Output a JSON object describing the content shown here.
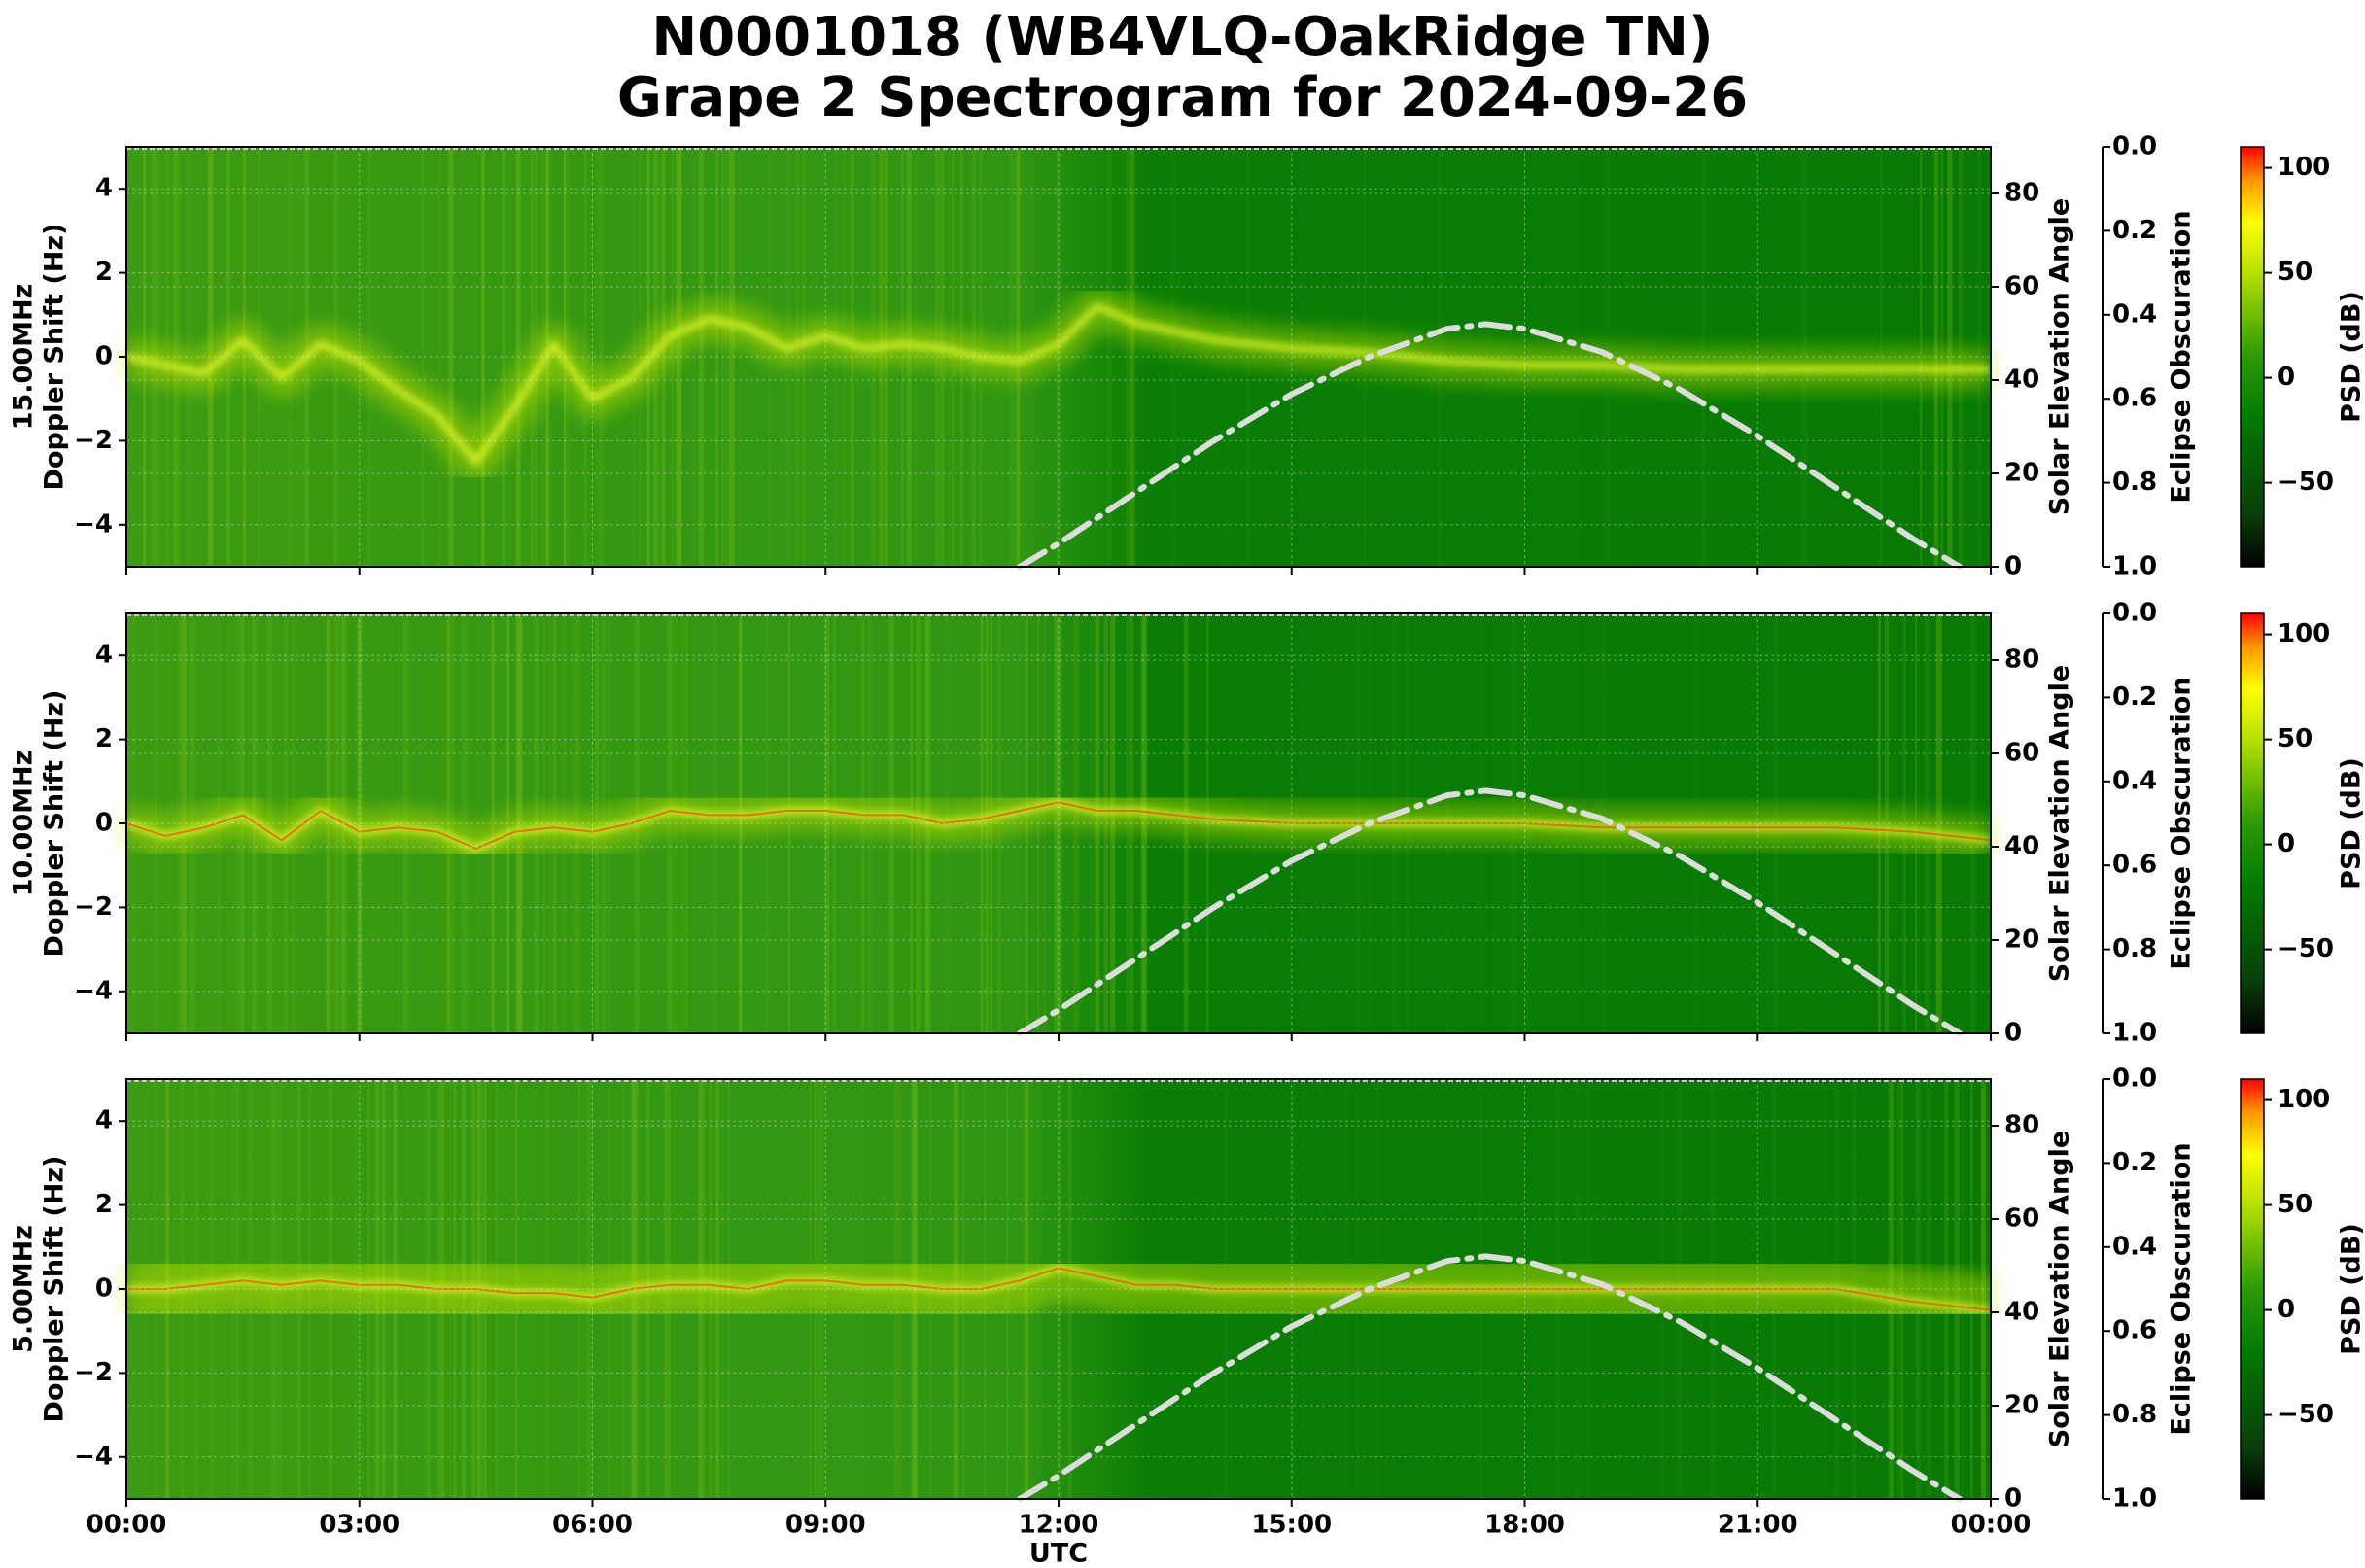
{
  "chart_data": {
    "type": "heatmap",
    "title": "N0001018 (WB4VLQ-OakRidge TN)",
    "subtitle": "Grape 2 Spectrogram for 2024-09-26",
    "xlabel": "UTC",
    "x_ticks": [
      "00:00",
      "03:00",
      "06:00",
      "09:00",
      "12:00",
      "15:00",
      "18:00",
      "21:00",
      "00:00"
    ],
    "x_range_hours": [
      0,
      24
    ],
    "grid": true,
    "panels": [
      {
        "frequency_label": "15.00MHz",
        "ylabel": "Doppler Shift (Hz)",
        "ylim": [
          -5,
          5
        ],
        "y_ticks": [
          4,
          2,
          0,
          -2,
          -4
        ],
        "right_ylabel": "Solar Elevation Angle",
        "right_ylim": [
          0,
          90
        ],
        "right_ticks": [
          80,
          60,
          40,
          20,
          0
        ],
        "eclipse_label": "Eclipse Obscuration",
        "eclipse_ticks": [
          "0.0",
          "0.2",
          "0.4",
          "0.6",
          "0.8",
          "1.0"
        ],
        "colorbar_label": "PSD (dB)",
        "colorbar_ticks": [
          100,
          50,
          0,
          -50
        ],
        "doppler_trace": {
          "x": [
            0,
            0.5,
            1,
            1.5,
            2,
            2.5,
            3,
            3.5,
            4,
            4.5,
            5,
            5.5,
            6,
            6.5,
            7,
            7.5,
            8,
            8.5,
            9,
            9.5,
            10,
            10.5,
            11,
            11.5,
            12,
            12.5,
            13,
            13.5,
            14,
            15,
            16,
            17,
            18,
            19,
            20,
            21,
            22,
            23,
            24
          ],
          "y": [
            0,
            -0.2,
            -0.4,
            0.4,
            -0.5,
            0.3,
            -0.1,
            -0.8,
            -1.4,
            -2.5,
            -1.2,
            0.3,
            -1,
            -0.5,
            0.5,
            0.9,
            0.7,
            0.2,
            0.5,
            0.2,
            0.3,
            0.2,
            0,
            -0.1,
            0.3,
            1.2,
            0.8,
            0.6,
            0.4,
            0.2,
            0.1,
            -0.1,
            -0.2,
            -0.2,
            -0.3,
            -0.3,
            -0.3,
            -0.3,
            -0.3
          ]
        }
      },
      {
        "frequency_label": "10.00MHz",
        "ylabel": "Doppler Shift (Hz)",
        "ylim": [
          -5,
          5
        ],
        "y_ticks": [
          4,
          2,
          0,
          -2,
          -4
        ],
        "right_ylabel": "Solar Elevation Angle",
        "right_ylim": [
          0,
          90
        ],
        "right_ticks": [
          80,
          60,
          40,
          20,
          0
        ],
        "eclipse_label": "Eclipse Obscuration",
        "eclipse_ticks": [
          "0.0",
          "0.2",
          "0.4",
          "0.6",
          "0.8",
          "1.0"
        ],
        "colorbar_label": "PSD (dB)",
        "colorbar_ticks": [
          100,
          50,
          0,
          -50
        ],
        "doppler_trace": {
          "x": [
            0,
            0.5,
            1,
            1.5,
            2,
            2.5,
            3,
            3.5,
            4,
            4.5,
            5,
            5.5,
            6,
            6.5,
            7,
            7.5,
            8,
            8.5,
            9,
            9.5,
            10,
            10.5,
            11,
            11.5,
            12,
            12.5,
            13,
            13.5,
            14,
            15,
            16,
            17,
            18,
            19,
            20,
            21,
            22,
            23,
            24
          ],
          "y": [
            0,
            -0.3,
            -0.1,
            0.2,
            -0.4,
            0.3,
            -0.2,
            -0.1,
            -0.2,
            -0.6,
            -0.2,
            -0.1,
            -0.2,
            0,
            0.3,
            0.2,
            0.2,
            0.3,
            0.3,
            0.2,
            0.2,
            0,
            0.1,
            0.3,
            0.5,
            0.3,
            0.3,
            0.2,
            0.1,
            0,
            0,
            0,
            0,
            -0.1,
            -0.1,
            -0.1,
            -0.1,
            -0.2,
            -0.4
          ]
        }
      },
      {
        "frequency_label": "5.00MHz",
        "ylabel": "Doppler Shift (Hz)",
        "ylim": [
          -5,
          5
        ],
        "y_ticks": [
          4,
          2,
          0,
          -2,
          -4
        ],
        "right_ylabel": "Solar Elevation Angle",
        "right_ylim": [
          0,
          90
        ],
        "right_ticks": [
          80,
          60,
          40,
          20,
          0
        ],
        "eclipse_label": "Eclipse Obscuration",
        "eclipse_ticks": [
          "0.0",
          "0.2",
          "0.4",
          "0.6",
          "0.8",
          "1.0"
        ],
        "colorbar_label": "PSD (dB)",
        "colorbar_ticks": [
          100,
          50,
          0,
          -50
        ],
        "doppler_trace": {
          "x": [
            0,
            0.5,
            1,
            1.5,
            2,
            2.5,
            3,
            3.5,
            4,
            4.5,
            5,
            5.5,
            6,
            6.5,
            7,
            7.5,
            8,
            8.5,
            9,
            9.5,
            10,
            10.5,
            11,
            11.5,
            12,
            12.5,
            13,
            13.5,
            14,
            15,
            16,
            17,
            18,
            19,
            20,
            21,
            22,
            23,
            24
          ],
          "y": [
            0,
            0,
            0.1,
            0.2,
            0.1,
            0.2,
            0.1,
            0.1,
            0,
            0,
            -0.1,
            -0.1,
            -0.2,
            0,
            0.1,
            0.1,
            0,
            0.2,
            0.2,
            0.1,
            0.1,
            0,
            0,
            0.2,
            0.5,
            0.3,
            0.1,
            0.1,
            0,
            0,
            0,
            0,
            0,
            0,
            0,
            0,
            0,
            -0.3,
            -0.5
          ]
        }
      }
    ],
    "solar_elevation": {
      "x": [
        11.5,
        12,
        13,
        14,
        15,
        16,
        17,
        17.5,
        18,
        19,
        20,
        21,
        22,
        23,
        23.6
      ],
      "y": [
        0,
        5,
        16,
        27,
        37,
        45,
        51,
        52,
        51,
        46,
        38,
        28,
        17,
        6,
        0
      ]
    },
    "colors": {
      "psd_colormap": [
        "#000000",
        "#006600",
        "#00a000",
        "#8bd000",
        "#ffff00",
        "#ff9900",
        "#ff0000"
      ],
      "solar_curve": "#dcdcdc",
      "background": "#008a00"
    }
  }
}
